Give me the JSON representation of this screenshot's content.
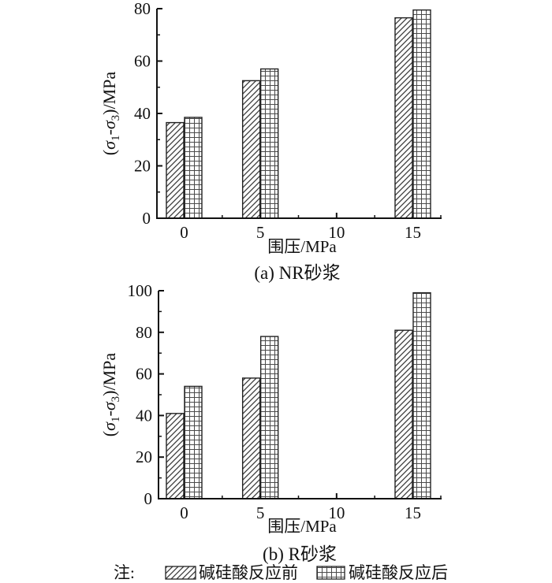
{
  "figure": {
    "background": "#ffffff",
    "colors": {
      "axis": "#111111",
      "bar_outline": "#222222",
      "diag_hatch": "#3a3a3a",
      "grid_hatch": "#4a4a4a",
      "bar_fill": "#ffffff"
    }
  },
  "legend": {
    "prefix": "注:",
    "position": "bottom-center",
    "items": [
      {
        "label": "碱硅酸反应前",
        "pattern": "diag",
        "swatch_icon": "diagonal-hatch-swatch"
      },
      {
        "label": "碱硅酸反应后",
        "pattern": "grid",
        "swatch_icon": "grid-hatch-swatch"
      }
    ]
  },
  "chart_data": [
    {
      "type": "bar",
      "caption": "(a) NR砂浆",
      "xlabel": "围压/MPa",
      "ylabel": "(σ₁-σ₃)/MPa",
      "ylabel_parts": [
        {
          "text": "("
        },
        {
          "text": "σ",
          "italic": true
        },
        {
          "text": "1",
          "sub": true
        },
        {
          "text": "-"
        },
        {
          "text": "σ",
          "italic": true
        },
        {
          "text": "3",
          "sub": true
        },
        {
          "text": ")/MPa"
        }
      ],
      "categories": [
        0,
        5,
        15
      ],
      "xticks": [
        0,
        5,
        10,
        15
      ],
      "xminor": [
        2.5,
        7.5,
        12.5
      ],
      "ylim": [
        0,
        80
      ],
      "ytick_step": 20,
      "yminor_step": 10,
      "grid": false,
      "series": [
        {
          "name": "碱硅酸反应前",
          "pattern": "diag",
          "values": [
            36.5,
            52.5,
            76.5
          ]
        },
        {
          "name": "碱硅酸反应后",
          "pattern": "grid",
          "values": [
            38.5,
            57,
            79.5
          ]
        }
      ]
    },
    {
      "type": "bar",
      "caption": "(b) R砂浆",
      "xlabel": "围压/MPa",
      "ylabel": "(σ₁-σ₃)/MPa",
      "ylabel_parts": [
        {
          "text": "("
        },
        {
          "text": "σ",
          "italic": true
        },
        {
          "text": "1",
          "sub": true
        },
        {
          "text": "-"
        },
        {
          "text": "σ",
          "italic": true
        },
        {
          "text": "3",
          "sub": true
        },
        {
          "text": ")/MPa"
        }
      ],
      "categories": [
        0,
        5,
        15
      ],
      "xticks": [
        0,
        5,
        10,
        15
      ],
      "xminor": [
        2.5,
        7.5,
        12.5
      ],
      "ylim": [
        0,
        100
      ],
      "ytick_step": 20,
      "yminor_step": 10,
      "grid": false,
      "series": [
        {
          "name": "碱硅酸反应前",
          "pattern": "diag",
          "values": [
            41,
            58,
            81
          ]
        },
        {
          "name": "碱硅酸反应后",
          "pattern": "grid",
          "values": [
            54,
            78,
            99
          ]
        }
      ]
    }
  ]
}
